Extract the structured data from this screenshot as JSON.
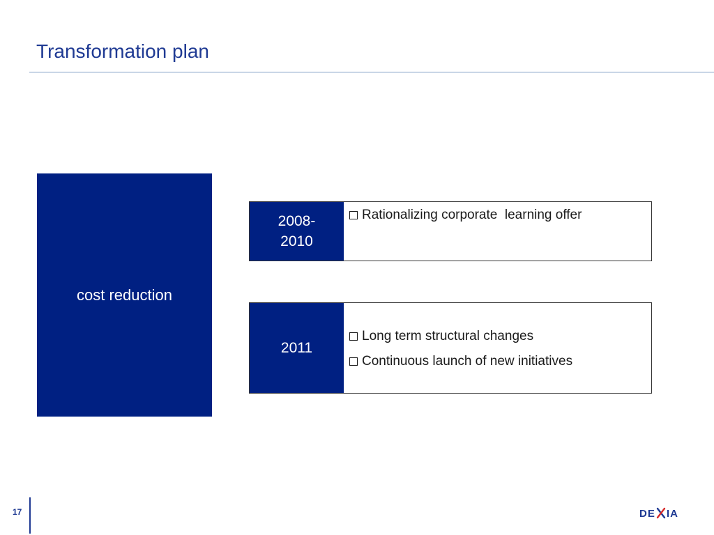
{
  "slide": {
    "title": "Transformation plan",
    "page_number": "17",
    "logo_text": "DEXIA"
  },
  "left_box": {
    "label": "cost reduction"
  },
  "rows": [
    {
      "year": "2008-\n2010",
      "items": [
        "Rationalizing corporate  learning offer"
      ]
    },
    {
      "year": "2011",
      "items": [
        "Long term structural changes",
        "Continuous launch of new initiatives"
      ]
    }
  ],
  "colors": {
    "navy": "#002082",
    "title_blue": "#1f3a93",
    "rule": "#7f9cc4"
  },
  "icons": {
    "bullet": "square-bullet-icon"
  }
}
